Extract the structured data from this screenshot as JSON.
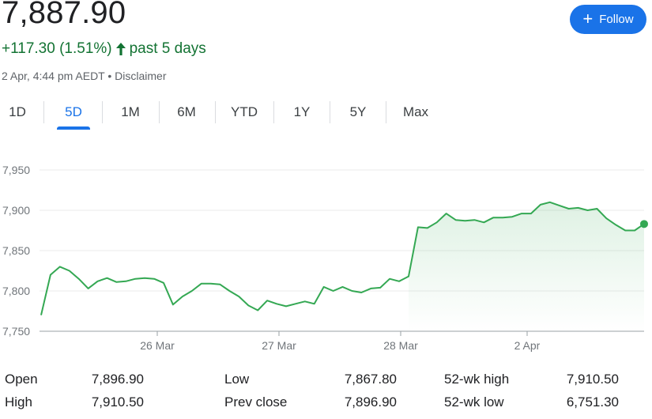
{
  "header": {
    "price": "7,887.90",
    "change": "+117.30 (1.51%)",
    "period": "past 5 days",
    "timestamp": "2 Apr, 4:44 pm AEDT",
    "separator": "•",
    "disclaimer": "Disclaimer",
    "follow_label": "Follow"
  },
  "tabs": [
    "1D",
    "5D",
    "1M",
    "6M",
    "YTD",
    "1Y",
    "5Y",
    "Max"
  ],
  "active_tab": "5D",
  "colors": {
    "line": "#34a853",
    "accent": "#1a73e8",
    "positive": "#137333"
  },
  "chart_data": {
    "type": "area",
    "title": "",
    "xlabel": "",
    "ylabel": "",
    "ylim": [
      7750,
      7950
    ],
    "y_ticks": [
      "7,950",
      "7,900",
      "7,850",
      "7,800",
      "7,750"
    ],
    "x_ticks": [
      "26 Mar",
      "27 Mar",
      "28 Mar",
      "2 Apr"
    ],
    "series": [
      {
        "values": [
          7770,
          7820,
          7830,
          7825,
          7815,
          7803,
          7812,
          7816,
          7811,
          7812,
          7815,
          7816,
          7815,
          7810,
          7783,
          7793,
          7800,
          7809,
          7809,
          7808,
          7800,
          7793,
          7782,
          7776,
          7788,
          7784,
          7781,
          7784,
          7787,
          7784,
          7805,
          7800,
          7805,
          7800,
          7798,
          7803,
          7804,
          7815,
          7812,
          7818,
          7879,
          7878,
          7885,
          7896,
          7888,
          7887,
          7888,
          7885,
          7891,
          7891,
          7892,
          7896,
          7896,
          7907,
          7910,
          7906,
          7902,
          7903,
          7900,
          7902,
          7890,
          7882,
          7875,
          7875,
          7883
        ]
      }
    ]
  },
  "stats": {
    "rows": [
      [
        {
          "label": "Open",
          "value": "7,896.90"
        },
        {
          "label": "Low",
          "value": "7,867.80"
        },
        {
          "label": "52-wk high",
          "value": "7,910.50"
        }
      ],
      [
        {
          "label": "High",
          "value": "7,910.50"
        },
        {
          "label": "Prev close",
          "value": "7,896.90"
        },
        {
          "label": "52-wk low",
          "value": "6,751.30"
        }
      ]
    ]
  }
}
